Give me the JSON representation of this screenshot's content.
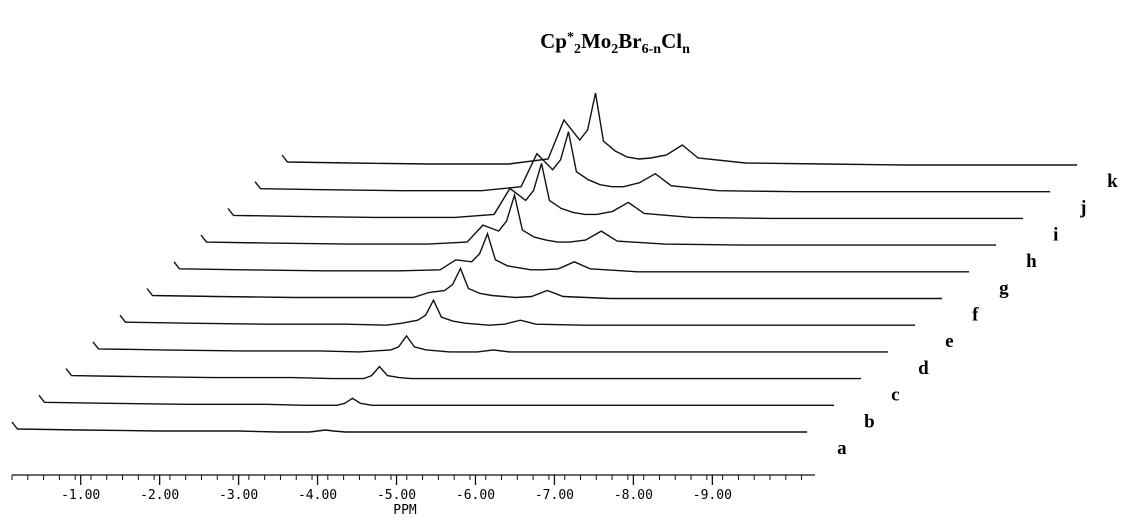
{
  "chart_data": {
    "type": "stacked-spectra",
    "title": [
      {
        "text": "Cp"
      },
      {
        "text": "*",
        "script": "sup"
      },
      {
        "text": "2",
        "script": "sub"
      },
      {
        "text": "Mo"
      },
      {
        "text": "2",
        "script": "sub"
      },
      {
        "text": "Br"
      },
      {
        "text": "6-n",
        "script": "sub"
      },
      {
        "text": "Cl"
      },
      {
        "text": "n",
        "script": "sub"
      }
    ],
    "xlabel": "PPM",
    "xlim": [
      -0.13,
      -10.3
    ],
    "xticks": [
      {
        "value": -1,
        "label": "-1.00"
      },
      {
        "value": -2,
        "label": "-2.00"
      },
      {
        "value": -3,
        "label": "-3.00"
      },
      {
        "value": -4,
        "label": "-4.00"
      },
      {
        "value": -5,
        "label": "-5.00"
      },
      {
        "value": -6,
        "label": "-6.00"
      },
      {
        "value": -7,
        "label": "-7.00"
      },
      {
        "value": -8,
        "label": "-8.00"
      },
      {
        "value": -9,
        "label": "-9.00"
      }
    ],
    "xminorstep": 0.2,
    "color": "#111111",
    "x": [
      -0.13,
      -0.2,
      -1,
      -2,
      -3,
      -3.5,
      -3.7,
      -3.9,
      -4.0,
      -4.1,
      -4.2,
      -4.35,
      -4.5,
      -4.65,
      -4.8,
      -5.0,
      -5.2,
      -5.4,
      -6,
      -7,
      -8,
      -9,
      -10.2
    ],
    "series": [
      {
        "name": "a",
        "values": [
          10,
          3,
          2,
          1,
          1,
          0,
          0,
          0,
          1,
          2,
          1,
          0,
          0,
          0,
          0,
          0,
          0,
          0,
          0,
          0,
          0,
          0,
          0
        ]
      },
      {
        "name": "b",
        "values": [
          10,
          3,
          2,
          1,
          1,
          0,
          0,
          0,
          2,
          7,
          2,
          0,
          0,
          0,
          0,
          0,
          0,
          0,
          0,
          0,
          0,
          0,
          0
        ]
      },
      {
        "name": "c",
        "values": [
          10,
          3,
          2,
          1,
          1,
          0,
          0,
          0,
          3,
          12,
          3,
          1,
          0,
          0,
          0,
          0,
          0,
          0,
          0,
          0,
          0,
          0,
          0
        ]
      },
      {
        "name": "d",
        "values": [
          10,
          3,
          2,
          1,
          1,
          0,
          1,
          2,
          5,
          16,
          5,
          2,
          1,
          0,
          0,
          0,
          2,
          0,
          0,
          0,
          0,
          0,
          0
        ]
      },
      {
        "name": "e",
        "values": [
          10,
          3,
          2,
          1,
          1,
          0,
          2,
          5,
          10,
          25,
          8,
          4,
          2,
          1,
          0,
          1,
          5,
          1,
          0,
          0,
          0,
          0,
          0
        ]
      },
      {
        "name": "f",
        "values": [
          10,
          3,
          2,
          1,
          1,
          1,
          6,
          8,
          14,
          30,
          10,
          5,
          3,
          2,
          1,
          2,
          8,
          2,
          0,
          0,
          0,
          0,
          0
        ]
      },
      {
        "name": "g",
        "values": [
          10,
          3,
          2,
          1,
          1,
          2,
          12,
          10,
          18,
          38,
          12,
          6,
          4,
          2,
          2,
          3,
          10,
          3,
          0,
          0,
          0,
          0,
          0
        ]
      },
      {
        "name": "h",
        "values": [
          10,
          3,
          2,
          1,
          1,
          3,
          20,
          14,
          24,
          50,
          15,
          8,
          5,
          3,
          3,
          5,
          14,
          4,
          1,
          0,
          0,
          0,
          0
        ]
      },
      {
        "name": "i",
        "values": [
          10,
          3,
          2,
          1,
          1,
          4,
          30,
          18,
          28,
          55,
          18,
          10,
          6,
          4,
          4,
          7,
          16,
          5,
          1,
          0,
          0,
          0,
          0
        ]
      },
      {
        "name": "j",
        "values": [
          10,
          3,
          2,
          1,
          1,
          5,
          38,
          22,
          32,
          60,
          20,
          12,
          7,
          5,
          5,
          9,
          18,
          6,
          1,
          0,
          0,
          0,
          0
        ]
      },
      {
        "name": "k",
        "values": [
          10,
          3,
          2,
          1,
          1,
          6,
          45,
          25,
          35,
          72,
          24,
          14,
          8,
          6,
          7,
          10,
          20,
          7,
          2,
          1,
          0,
          0,
          0
        ]
      }
    ]
  }
}
